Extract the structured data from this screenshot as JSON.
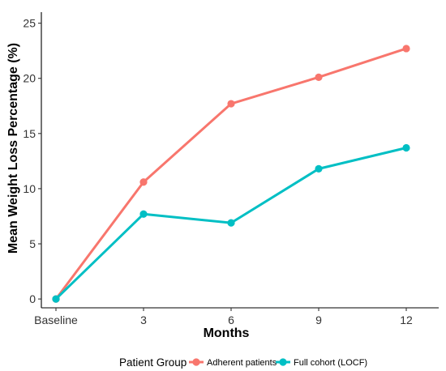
{
  "chart_data": {
    "type": "line",
    "title": "",
    "xlabel": "Months",
    "ylabel": "Mean Weight Loss Percentage (%)",
    "categories": [
      "Baseline",
      "3",
      "6",
      "9",
      "12"
    ],
    "y_ticks": [
      0,
      5,
      10,
      15,
      20,
      25
    ],
    "ylim": [
      -0.8,
      26
    ],
    "grid": false,
    "legend_placement": "bottom",
    "legend_title": "Patient Group",
    "series": [
      {
        "name": "Adherent patients",
        "color": "#F8766D",
        "values": [
          0,
          10.6,
          17.7,
          20.1,
          22.7
        ]
      },
      {
        "name": "Full cohort (LOCF)",
        "color": "#00BFC4",
        "values": [
          0,
          7.7,
          6.9,
          11.8,
          13.7
        ]
      }
    ]
  }
}
